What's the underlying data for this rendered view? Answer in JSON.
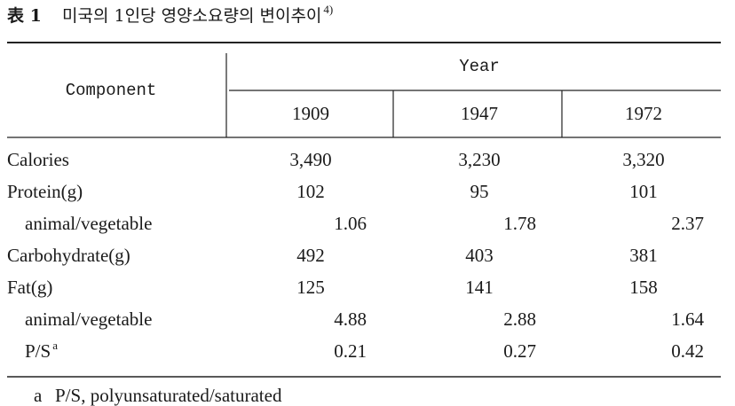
{
  "title": {
    "label": "表 1",
    "text": "미국의 1인당 영양소요량의 변이추이",
    "ref": "4)"
  },
  "table": {
    "header": {
      "component": "Component",
      "year": "Year",
      "years": [
        "1909",
        "1947",
        "1972"
      ]
    },
    "rows": [
      {
        "label": "Calories",
        "values": [
          "3,490",
          "3,230",
          "3,320"
        ]
      },
      {
        "label": "Protein(g)",
        "values": [
          "102",
          "95",
          "101"
        ],
        "subrows": [
          {
            "label": "animal/vegetable",
            "values": [
              "1.06",
              "1.78",
              "2.37"
            ]
          }
        ]
      },
      {
        "label": "Carbohydrate(g)",
        "values": [
          "492",
          "403",
          "381"
        ]
      },
      {
        "label": "Fat(g)",
        "values": [
          "125",
          "141",
          "158"
        ],
        "subrows": [
          {
            "label": "animal/vegetable",
            "values": [
              "4.88",
              "2.88",
              "1.64"
            ]
          },
          {
            "label": "P/S",
            "sup": "a",
            "values": [
              "0.21",
              "0.27",
              "0.42"
            ]
          }
        ]
      }
    ]
  },
  "footnote": {
    "marker": "a",
    "text": "P/S, polyunsaturated/saturated"
  }
}
